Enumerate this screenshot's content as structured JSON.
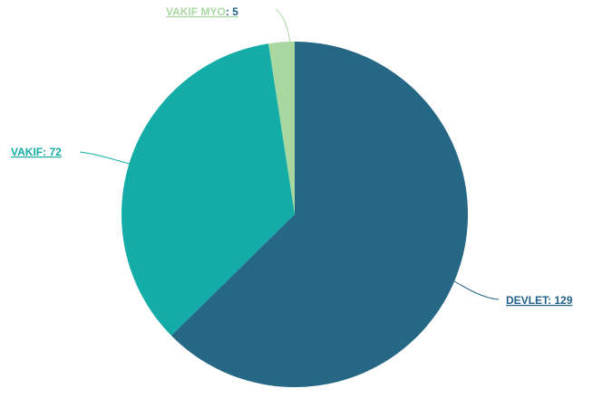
{
  "chart_data": {
    "type": "pie",
    "categories": [
      "DEVLET",
      "VAKIF",
      "VAKIF MYO"
    ],
    "values": [
      129,
      72,
      5
    ],
    "value_labels": [
      ": 129",
      ": 72",
      ": 5"
    ],
    "colors": [
      "#256785",
      "#14aca6",
      "#a8d8a0"
    ]
  }
}
